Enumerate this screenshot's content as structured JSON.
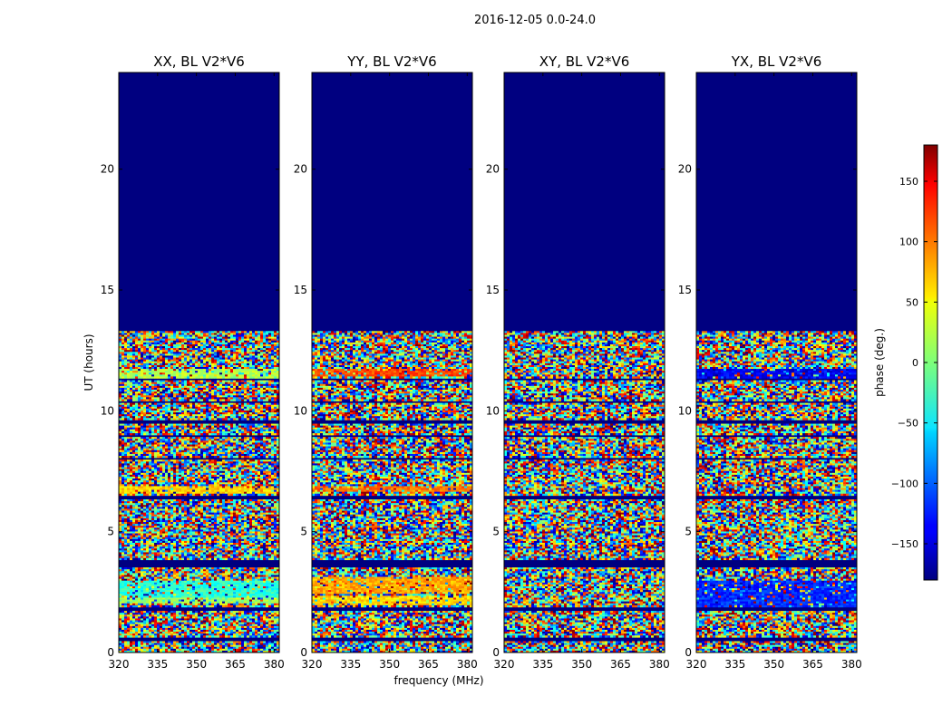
{
  "chart_data": {
    "type": "heatmap",
    "suptitle": "2016-12-05 0.0-24.0",
    "xlabel": "frequency (MHz)",
    "ylabel": "UT (hours)",
    "xlim": [
      320,
      382
    ],
    "ylim": [
      0,
      24
    ],
    "xticks": [
      320,
      335,
      350,
      365,
      380
    ],
    "yticks": [
      0,
      5,
      10,
      15,
      20
    ],
    "data_end_hour": 13.3,
    "colormap": "jet",
    "panels": [
      {
        "title": "XX, BL V2*V6",
        "flags": [
          {
            "from": 11.35,
            "to": 11.7,
            "value": 20
          },
          {
            "from": 6.6,
            "to": 6.85,
            "value": 60
          },
          {
            "from": 2.3,
            "to": 3.0,
            "value": -30
          },
          {
            "from": 2.05,
            "to": 2.3,
            "value": 10
          }
        ]
      },
      {
        "title": "YY, BL V2*V6",
        "flags": [
          {
            "from": 11.45,
            "to": 11.7,
            "value": 110
          },
          {
            "from": 6.65,
            "to": 6.9,
            "value": 95
          },
          {
            "from": 2.4,
            "to": 3.1,
            "value": 75
          },
          {
            "from": 1.95,
            "to": 2.35,
            "value": 60
          }
        ]
      },
      {
        "title": "XY, BL V2*V6",
        "flags": []
      },
      {
        "title": "YX, BL V2*V6",
        "flags": [
          {
            "from": 11.3,
            "to": 11.7,
            "value": -140
          },
          {
            "from": 1.8,
            "to": 3.0,
            "value": -120
          }
        ]
      }
    ],
    "colorbar": {
      "label": "phase (deg.)",
      "range": [
        -180,
        180
      ],
      "ticks": [
        -150,
        -100,
        -50,
        0,
        50,
        100,
        150
      ],
      "tick_labels": [
        "−150",
        "−100",
        "−50",
        "0",
        "50",
        "100",
        "150"
      ]
    }
  }
}
